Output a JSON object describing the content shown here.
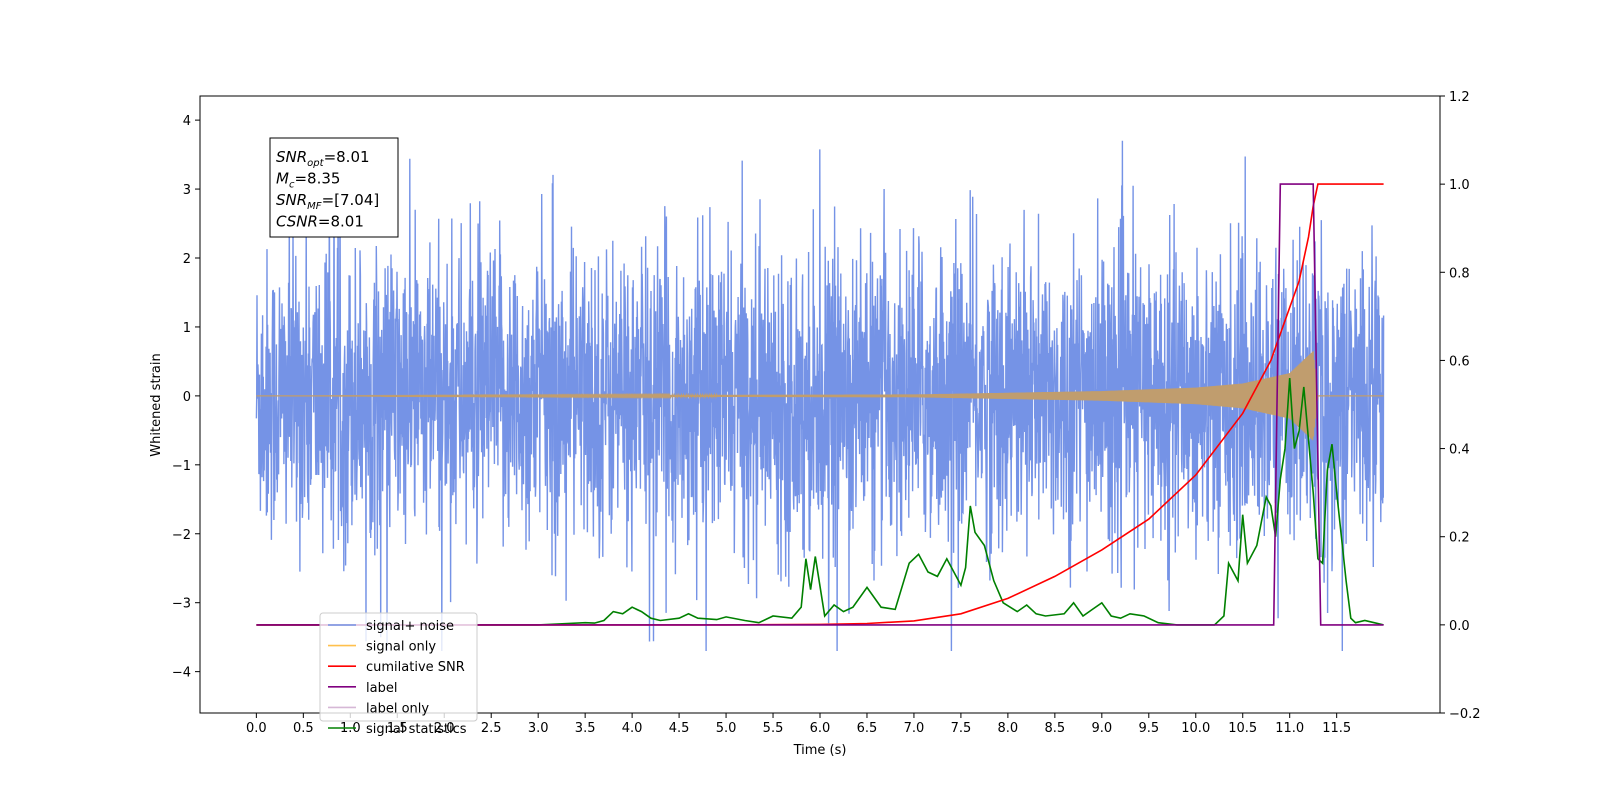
{
  "chart_data": {
    "type": "line",
    "xlabel": "Time (s)",
    "ylabel_left": "Whitened strain",
    "ylabel_right": "",
    "xlim": [
      -0.6,
      12.6
    ],
    "ylim_left": [
      -4.6,
      4.35
    ],
    "ylim_right": [
      -0.2,
      1.2
    ],
    "x_ticks": [
      "0.0",
      "0.5",
      "1.0",
      "1.5",
      "2.0",
      "2.5",
      "3.0",
      "3.5",
      "4.0",
      "4.5",
      "5.0",
      "5.5",
      "6.0",
      "6.5",
      "7.0",
      "7.5",
      "8.0",
      "8.5",
      "9.0",
      "9.5",
      "10.0",
      "10.5",
      "11.0",
      "11.5"
    ],
    "y_ticks_left": [
      "4",
      "3",
      "2",
      "1",
      "0",
      "−1",
      "−2",
      "−3",
      "−4"
    ],
    "y_ticks_right": [
      "1.2",
      "1.0",
      "0.8",
      "0.6",
      "0.4",
      "0.2",
      "0.0",
      "−0.2"
    ],
    "grid": false,
    "legend_position": "lower-left",
    "series": [
      {
        "name": "signal+ noise",
        "axis": "left",
        "color": "#7593e6",
        "description_values": {
          "t_start": 0.0,
          "t_end": 12.0,
          "amplitude_typical": 1.2,
          "peak_max": 3.93,
          "peak_min": -4.12
        }
      },
      {
        "name": "signal only",
        "axis": "left",
        "color": "#ffc04d",
        "description_values": {
          "t_start": 0.0,
          "t_end": 12.0,
          "merger_time": 11.3,
          "amplitude_envelope": [
            [
              0.0,
              0.0
            ],
            [
              7.0,
              0.02
            ],
            [
              9.0,
              0.07
            ],
            [
              10.0,
              0.12
            ],
            [
              10.5,
              0.18
            ],
            [
              11.0,
              0.33
            ],
            [
              11.25,
              0.65
            ],
            [
              11.3,
              0.0
            ]
          ]
        }
      },
      {
        "name": "cumilative SNR",
        "axis": "right",
        "color": "#ff0000",
        "points": [
          [
            0.0,
            0.0
          ],
          [
            5.0,
            0.0
          ],
          [
            6.0,
            0.001
          ],
          [
            6.5,
            0.003
          ],
          [
            7.0,
            0.009
          ],
          [
            7.5,
            0.025
          ],
          [
            8.0,
            0.06
          ],
          [
            8.5,
            0.11
          ],
          [
            9.0,
            0.17
          ],
          [
            9.5,
            0.24
          ],
          [
            10.0,
            0.34
          ],
          [
            10.5,
            0.48
          ],
          [
            10.8,
            0.6
          ],
          [
            11.0,
            0.72
          ],
          [
            11.1,
            0.78
          ],
          [
            11.2,
            0.88
          ],
          [
            11.25,
            0.95
          ],
          [
            11.3,
            1.0
          ],
          [
            12.0,
            1.0
          ]
        ]
      },
      {
        "name": "label",
        "axis": "right",
        "color": "#800080",
        "points": [
          [
            0.0,
            0.0
          ],
          [
            10.83,
            0.0
          ],
          [
            10.9,
            1.0
          ],
          [
            11.25,
            1.0
          ],
          [
            11.33,
            0.0
          ],
          [
            12.0,
            0.0
          ]
        ]
      },
      {
        "name": "label only",
        "axis": "right",
        "color": "#d6b8d6",
        "points": []
      },
      {
        "name": "signal statistics",
        "axis": "right",
        "color": "#008000",
        "points": [
          [
            0.0,
            0.0
          ],
          [
            3.0,
            0.0
          ],
          [
            3.2,
            0.002
          ],
          [
            3.5,
            0.005
          ],
          [
            3.6,
            0.004
          ],
          [
            3.7,
            0.01
          ],
          [
            3.8,
            0.03
          ],
          [
            3.9,
            0.025
          ],
          [
            4.0,
            0.04
          ],
          [
            4.1,
            0.03
          ],
          [
            4.2,
            0.015
          ],
          [
            4.3,
            0.01
          ],
          [
            4.5,
            0.015
          ],
          [
            4.6,
            0.025
          ],
          [
            4.7,
            0.015
          ],
          [
            4.9,
            0.012
          ],
          [
            5.0,
            0.018
          ],
          [
            5.2,
            0.01
          ],
          [
            5.35,
            0.005
          ],
          [
            5.5,
            0.02
          ],
          [
            5.7,
            0.015
          ],
          [
            5.8,
            0.04
          ],
          [
            5.85,
            0.15
          ],
          [
            5.9,
            0.08
          ],
          [
            5.95,
            0.155
          ],
          [
            6.05,
            0.02
          ],
          [
            6.15,
            0.045
          ],
          [
            6.25,
            0.03
          ],
          [
            6.35,
            0.04
          ],
          [
            6.5,
            0.085
          ],
          [
            6.55,
            0.07
          ],
          [
            6.65,
            0.04
          ],
          [
            6.8,
            0.035
          ],
          [
            6.95,
            0.14
          ],
          [
            7.05,
            0.16
          ],
          [
            7.15,
            0.12
          ],
          [
            7.25,
            0.11
          ],
          [
            7.35,
            0.15
          ],
          [
            7.45,
            0.11
          ],
          [
            7.5,
            0.09
          ],
          [
            7.55,
            0.13
          ],
          [
            7.6,
            0.27
          ],
          [
            7.65,
            0.21
          ],
          [
            7.75,
            0.18
          ],
          [
            7.85,
            0.1
          ],
          [
            7.95,
            0.05
          ],
          [
            8.1,
            0.03
          ],
          [
            8.2,
            0.045
          ],
          [
            8.3,
            0.025
          ],
          [
            8.4,
            0.02
          ],
          [
            8.6,
            0.025
          ],
          [
            8.7,
            0.05
          ],
          [
            8.8,
            0.02
          ],
          [
            8.9,
            0.035
          ],
          [
            9.0,
            0.05
          ],
          [
            9.1,
            0.02
          ],
          [
            9.2,
            0.015
          ],
          [
            9.3,
            0.025
          ],
          [
            9.45,
            0.02
          ],
          [
            9.6,
            0.005
          ],
          [
            9.8,
            0.0
          ],
          [
            10.2,
            0.0
          ],
          [
            10.3,
            0.02
          ],
          [
            10.35,
            0.14
          ],
          [
            10.45,
            0.1
          ],
          [
            10.5,
            0.25
          ],
          [
            10.55,
            0.14
          ],
          [
            10.65,
            0.18
          ],
          [
            10.75,
            0.29
          ],
          [
            10.8,
            0.27
          ],
          [
            10.85,
            0.2
          ],
          [
            10.9,
            0.33
          ],
          [
            10.95,
            0.4
          ],
          [
            11.0,
            0.56
          ],
          [
            11.05,
            0.4
          ],
          [
            11.1,
            0.44
          ],
          [
            11.15,
            0.54
          ],
          [
            11.25,
            0.3
          ],
          [
            11.3,
            0.15
          ],
          [
            11.35,
            0.14
          ],
          [
            11.4,
            0.35
          ],
          [
            11.45,
            0.41
          ],
          [
            11.5,
            0.3
          ],
          [
            11.55,
            0.2
          ],
          [
            11.6,
            0.1
          ],
          [
            11.65,
            0.015
          ],
          [
            11.7,
            0.005
          ],
          [
            11.8,
            0.01
          ],
          [
            11.9,
            0.005
          ],
          [
            12.0,
            0.0
          ]
        ]
      }
    ],
    "annotation_lines": [
      {
        "label": "SNR",
        "sub": "opt",
        "value": "=8.01"
      },
      {
        "label": "M",
        "sub": "c",
        "value": "=8.35"
      },
      {
        "label": "SNR",
        "sub": "MF",
        "value": "=[7.04]"
      },
      {
        "label": "CSNR",
        "sub": "",
        "value": "=8.01"
      }
    ]
  }
}
